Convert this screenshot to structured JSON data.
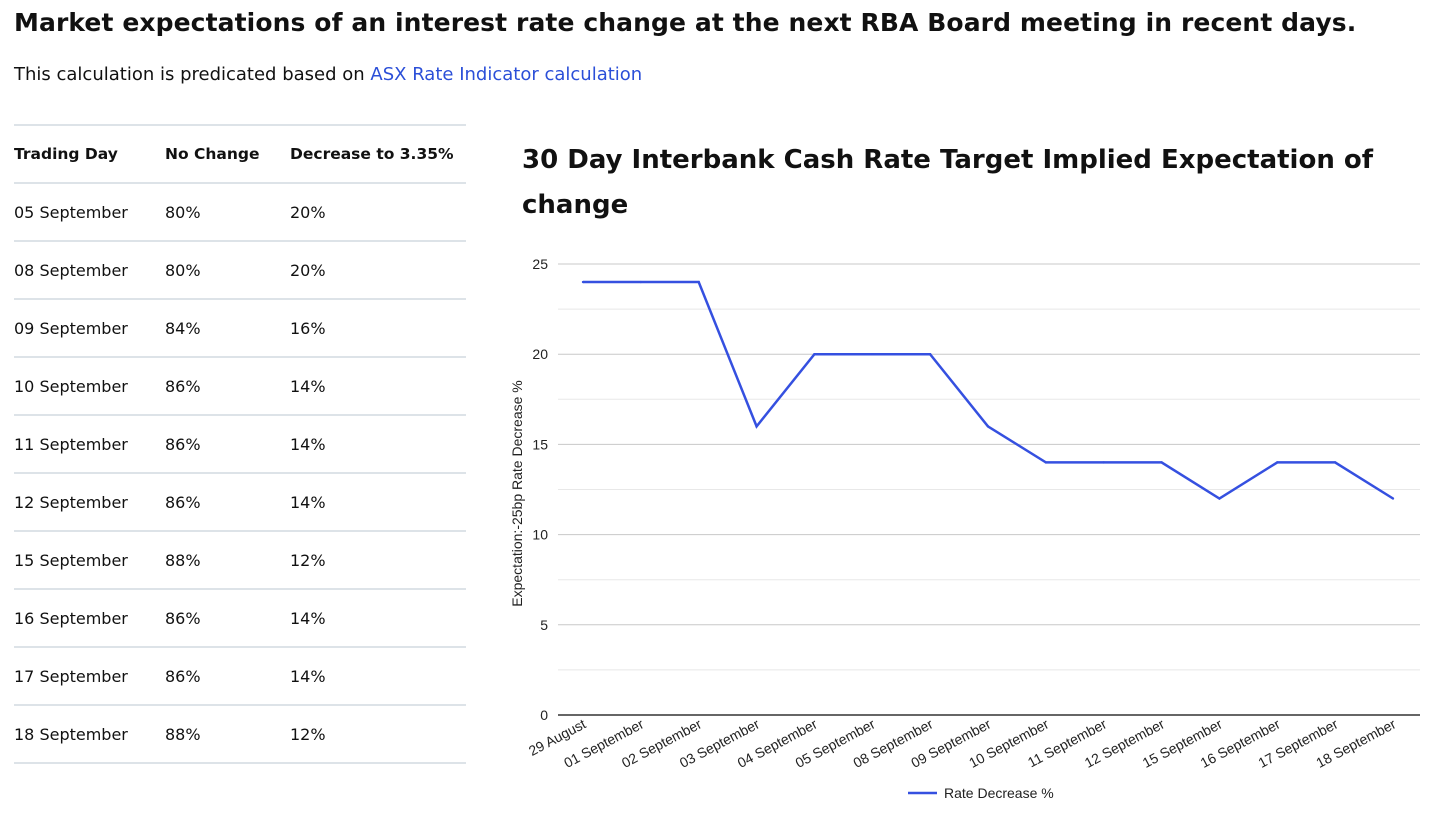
{
  "header": {
    "title": "Market expectations of an interest rate change at the next RBA Board meeting in recent days.",
    "subtitle_prefix": "This calculation is predicated based on ",
    "subtitle_link": "ASX Rate Indicator calculation"
  },
  "table": {
    "columns": [
      "Trading Day",
      "No Change",
      "Decrease to 3.35%"
    ],
    "rows": [
      [
        "05 September",
        "80%",
        "20%"
      ],
      [
        "08 September",
        "80%",
        "20%"
      ],
      [
        "09 September",
        "84%",
        "16%"
      ],
      [
        "10 September",
        "86%",
        "14%"
      ],
      [
        "11 September",
        "86%",
        "14%"
      ],
      [
        "12 September",
        "86%",
        "14%"
      ],
      [
        "15 September",
        "88%",
        "12%"
      ],
      [
        "16 September",
        "86%",
        "14%"
      ],
      [
        "17 September",
        "86%",
        "14%"
      ],
      [
        "18 September",
        "88%",
        "12%"
      ]
    ]
  },
  "chart_data": {
    "type": "line",
    "title": "30 Day Interbank Cash Rate Target Implied Expectation of change",
    "xlabel": "",
    "ylabel": "Expectation:-25bp Rate Decrease %",
    "categories": [
      "29 August",
      "01 September",
      "02 September",
      "03 September",
      "04 September",
      "05 September",
      "08 September",
      "09 September",
      "10 September",
      "11 September",
      "12 September",
      "15 September",
      "16 September",
      "17 September",
      "18 September"
    ],
    "series": [
      {
        "name": "Rate Decrease %",
        "color": "#3550e0",
        "values": [
          24,
          24,
          24,
          16,
          20,
          20,
          20,
          16,
          14,
          14,
          14,
          12,
          14,
          14,
          12
        ]
      }
    ],
    "ylim": [
      0,
      25
    ],
    "yticks": [
      0,
      5,
      10,
      15,
      20,
      25
    ],
    "grid": true,
    "legend": "bottom-center"
  }
}
